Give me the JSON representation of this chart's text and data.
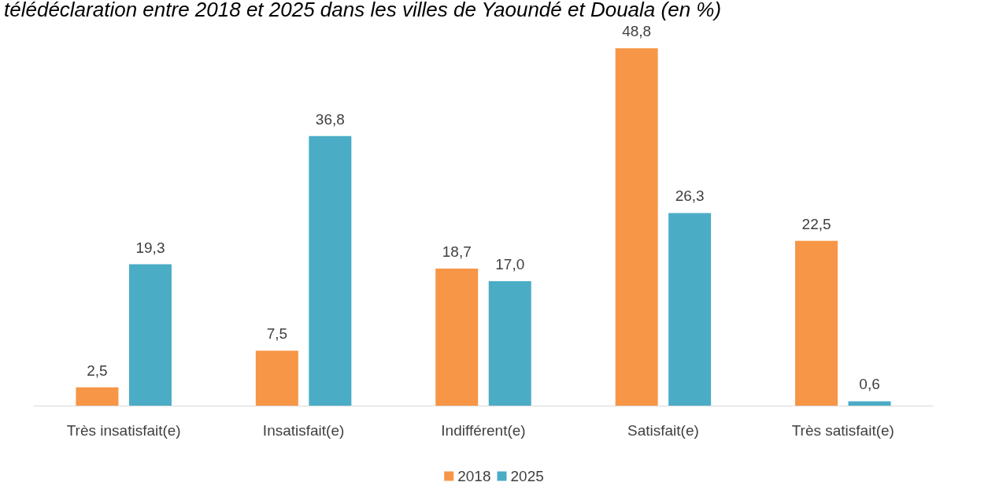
{
  "chart_data": {
    "type": "bar",
    "title": "télédéclaration entre 2018 et 2025 dans les villes de Yaoundé et Douala (en %)",
    "categories": [
      "Très insatisfait(e)",
      "Insatisfait(e)",
      "Indifférent(e)",
      "Satisfait(e)",
      "Très satisfait(e)"
    ],
    "series": [
      {
        "name": "2018",
        "color": "#f79646",
        "values": [
          2.5,
          7.5,
          18.7,
          48.8,
          22.5
        ],
        "value_labels": [
          "2,5",
          "7,5",
          "18,7",
          "48,8",
          "22,5"
        ]
      },
      {
        "name": "2025",
        "color": "#4bacc6",
        "values": [
          19.3,
          36.8,
          17.0,
          26.3,
          0.6
        ],
        "value_labels": [
          "19,3",
          "36,8",
          "17,0",
          "26,3",
          "0,6"
        ]
      }
    ],
    "legend": "bottom"
  }
}
